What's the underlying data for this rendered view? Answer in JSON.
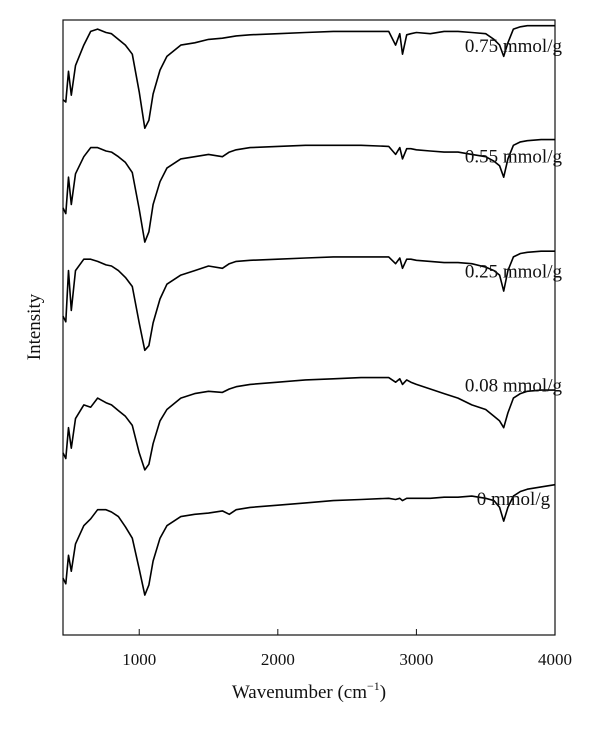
{
  "chart_data": {
    "type": "line",
    "xlabel": "Wavenumber (cm",
    "xlabel_sup": "−1",
    "xlabel_close": ")",
    "ylabel": "Intensity",
    "xlim": [
      450,
      4000
    ],
    "xticks": [
      1000,
      2000,
      3000,
      4000
    ],
    "xtick_labels": [
      "1000",
      "2000",
      "3000",
      "4000"
    ],
    "y_ticks_shown": false,
    "ylim": [
      0,
      5.4
    ],
    "grid": false,
    "legend": "inline-labels",
    "line_color": "#000000",
    "series": [
      {
        "name": "0.75 mmol/g",
        "offset": 4.4,
        "x": [
          450,
          470,
          490,
          510,
          540,
          600,
          650,
          700,
          760,
          800,
          850,
          900,
          950,
          1000,
          1040,
          1070,
          1100,
          1150,
          1200,
          1300,
          1400,
          1500,
          1600,
          1700,
          1800,
          2000,
          2200,
          2400,
          2600,
          2800,
          2850,
          2880,
          2900,
          2930,
          2960,
          3000,
          3100,
          3200,
          3300,
          3400,
          3500,
          3560,
          3600,
          3630,
          3660,
          3700,
          3750,
          3800,
          3900,
          4000
        ],
        "y": [
          0.3,
          0.28,
          0.55,
          0.34,
          0.6,
          0.78,
          0.9,
          0.92,
          0.89,
          0.88,
          0.83,
          0.78,
          0.7,
          0.37,
          0.05,
          0.12,
          0.35,
          0.56,
          0.68,
          0.78,
          0.8,
          0.83,
          0.84,
          0.86,
          0.87,
          0.88,
          0.89,
          0.9,
          0.9,
          0.9,
          0.78,
          0.88,
          0.7,
          0.87,
          0.88,
          0.89,
          0.88,
          0.9,
          0.9,
          0.89,
          0.88,
          0.83,
          0.78,
          0.68,
          0.8,
          0.92,
          0.94,
          0.95,
          0.95,
          0.95
        ]
      },
      {
        "name": "0.55 mmol/g",
        "offset": 3.4,
        "x": [
          450,
          470,
          490,
          510,
          540,
          600,
          650,
          700,
          760,
          800,
          850,
          900,
          950,
          1000,
          1040,
          1070,
          1100,
          1150,
          1200,
          1300,
          1400,
          1500,
          1600,
          1650,
          1700,
          1800,
          2000,
          2200,
          2400,
          2600,
          2800,
          2850,
          2880,
          2900,
          2930,
          2960,
          3000,
          3100,
          3200,
          3300,
          3400,
          3500,
          3560,
          3600,
          3630,
          3660,
          3700,
          3750,
          3800,
          3900,
          4000
        ],
        "y": [
          0.35,
          0.3,
          0.62,
          0.38,
          0.65,
          0.8,
          0.88,
          0.88,
          0.85,
          0.84,
          0.8,
          0.75,
          0.66,
          0.34,
          0.05,
          0.14,
          0.38,
          0.58,
          0.7,
          0.78,
          0.8,
          0.82,
          0.8,
          0.84,
          0.86,
          0.88,
          0.89,
          0.9,
          0.9,
          0.9,
          0.89,
          0.82,
          0.88,
          0.78,
          0.87,
          0.87,
          0.86,
          0.85,
          0.84,
          0.84,
          0.82,
          0.8,
          0.76,
          0.72,
          0.62,
          0.78,
          0.9,
          0.93,
          0.94,
          0.95,
          0.95
        ]
      },
      {
        "name": "0.25 mmol/g",
        "offset": 2.4,
        "x": [
          450,
          470,
          490,
          510,
          540,
          600,
          650,
          700,
          760,
          800,
          850,
          900,
          950,
          1000,
          1040,
          1070,
          1100,
          1150,
          1200,
          1300,
          1400,
          1500,
          1600,
          1650,
          1700,
          1800,
          2000,
          2200,
          2400,
          2600,
          2800,
          2850,
          2880,
          2900,
          2930,
          2960,
          3000,
          3100,
          3200,
          3300,
          3400,
          3500,
          3560,
          3600,
          3630,
          3660,
          3700,
          3750,
          3800,
          3900,
          4000
        ],
        "y": [
          0.4,
          0.35,
          0.8,
          0.45,
          0.8,
          0.9,
          0.9,
          0.88,
          0.85,
          0.84,
          0.8,
          0.74,
          0.66,
          0.34,
          0.1,
          0.14,
          0.34,
          0.55,
          0.68,
          0.76,
          0.8,
          0.84,
          0.82,
          0.86,
          0.88,
          0.89,
          0.9,
          0.91,
          0.92,
          0.92,
          0.92,
          0.86,
          0.91,
          0.82,
          0.9,
          0.9,
          0.89,
          0.88,
          0.87,
          0.87,
          0.86,
          0.83,
          0.8,
          0.76,
          0.62,
          0.8,
          0.92,
          0.95,
          0.96,
          0.97,
          0.97
        ]
      },
      {
        "name": "0.08 mmol/g",
        "offset": 1.4,
        "x": [
          450,
          470,
          490,
          510,
          540,
          600,
          650,
          700,
          760,
          800,
          850,
          900,
          950,
          1000,
          1040,
          1070,
          1100,
          1150,
          1200,
          1300,
          1400,
          1500,
          1600,
          1650,
          1700,
          1800,
          2000,
          2200,
          2400,
          2600,
          2800,
          2850,
          2880,
          2900,
          2930,
          2960,
          3000,
          3100,
          3200,
          3300,
          3400,
          3500,
          3560,
          3600,
          3630,
          3660,
          3700,
          3750,
          3800,
          3900,
          4000
        ],
        "y": [
          0.2,
          0.15,
          0.42,
          0.24,
          0.5,
          0.62,
          0.6,
          0.68,
          0.64,
          0.62,
          0.57,
          0.52,
          0.44,
          0.2,
          0.05,
          0.1,
          0.28,
          0.48,
          0.58,
          0.68,
          0.72,
          0.74,
          0.73,
          0.76,
          0.78,
          0.8,
          0.82,
          0.84,
          0.85,
          0.86,
          0.86,
          0.82,
          0.85,
          0.8,
          0.84,
          0.82,
          0.8,
          0.76,
          0.72,
          0.68,
          0.62,
          0.58,
          0.52,
          0.48,
          0.42,
          0.55,
          0.68,
          0.72,
          0.74,
          0.75,
          0.75
        ]
      },
      {
        "name": "0 mmol/g",
        "offset": 0.4,
        "x": [
          450,
          470,
          490,
          510,
          540,
          600,
          650,
          700,
          760,
          800,
          850,
          900,
          950,
          1000,
          1040,
          1070,
          1100,
          1150,
          1200,
          1300,
          1400,
          1500,
          1600,
          1650,
          1700,
          1800,
          2000,
          2200,
          2400,
          2600,
          2800,
          2850,
          2880,
          2900,
          2930,
          2960,
          3000,
          3100,
          3200,
          3300,
          3400,
          3500,
          3560,
          3600,
          3630,
          3660,
          3700,
          3750,
          3800,
          3900,
          4000
        ],
        "y": [
          0.1,
          0.05,
          0.3,
          0.16,
          0.4,
          0.56,
          0.62,
          0.7,
          0.7,
          0.68,
          0.64,
          0.55,
          0.45,
          0.18,
          -0.05,
          0.04,
          0.25,
          0.45,
          0.56,
          0.64,
          0.66,
          0.67,
          0.69,
          0.66,
          0.7,
          0.72,
          0.74,
          0.76,
          0.78,
          0.79,
          0.8,
          0.79,
          0.8,
          0.78,
          0.8,
          0.8,
          0.8,
          0.8,
          0.81,
          0.81,
          0.82,
          0.8,
          0.78,
          0.72,
          0.6,
          0.72,
          0.82,
          0.86,
          0.88,
          0.9,
          0.92
        ]
      }
    ],
    "labels": [
      {
        "text": "0.75 mmol/g",
        "x": 3700,
        "y": 5.12
      },
      {
        "text": "0.55 mmol/g",
        "x": 3700,
        "y": 4.15
      },
      {
        "text": "0.25 mmol/g",
        "x": 3700,
        "y": 3.14
      },
      {
        "text": "0.08 mmol/g",
        "x": 3700,
        "y": 2.14
      },
      {
        "text": "0 mmol/g",
        "x": 3700,
        "y": 1.14
      }
    ]
  }
}
